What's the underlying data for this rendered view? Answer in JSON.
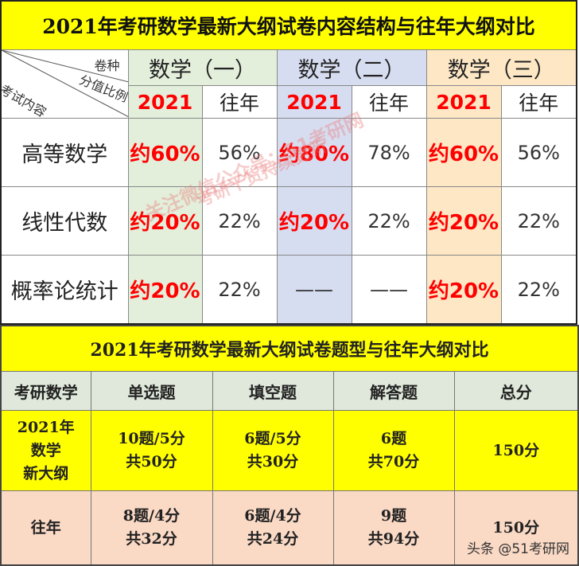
{
  "table1": {
    "title": "2021年考研数学最新大纲试卷内容结构与往年大纲对比",
    "corner": {
      "top": "卷种",
      "middle": "分值比例",
      "bottom": "考试内容"
    },
    "groups": [
      "数学（一）",
      "数学（二）",
      "数学（三）"
    ],
    "year_new": "2021",
    "year_old": "往年",
    "rows": [
      {
        "label": "高等数学",
        "values": [
          "约60%",
          "56%",
          "约80%",
          "78%",
          "约60%",
          "56%"
        ]
      },
      {
        "label": "线性代数",
        "values": [
          "约20%",
          "22%",
          "约20%",
          "22%",
          "约20%",
          "22%"
        ]
      },
      {
        "label": "概率论统计",
        "values": [
          "约20%",
          "22%",
          "——",
          "——",
          "约20%",
          "22%"
        ]
      }
    ],
    "colors": {
      "title_bg": "#ffff00",
      "group1_bg": "#e3efdb",
      "group2_bg": "#d7ddf0",
      "group3_bg": "#fde7c5",
      "highlight": "#ff0000"
    }
  },
  "table2": {
    "title": "2021年考研数学最新大纲试卷题型与往年大纲对比",
    "headers": [
      "考研数学",
      "单选题",
      "填空题",
      "解答题",
      "总分"
    ],
    "rows": [
      {
        "label": [
          "2021年",
          "数学",
          "新大纲"
        ],
        "cells": [
          [
            "10题/5分",
            "共50分"
          ],
          [
            "6题/5分",
            "共30分"
          ],
          [
            "6题",
            "共70分"
          ]
        ],
        "total": "150分"
      },
      {
        "label": [
          "往年"
        ],
        "cells": [
          [
            "8题/4分",
            "共32分"
          ],
          [
            "6题/4分",
            "共24分"
          ],
          [
            "9题",
            "共94分"
          ]
        ],
        "total": "150分"
      }
    ],
    "colors": {
      "title_bg": "#ffff00",
      "header_bg": "#dfe8da",
      "new_row_bg": "#ffff00",
      "old_row_bg": "#fad9c5"
    }
  },
  "watermark": {
    "line1": "关注微信公众号：51考研网",
    "line2": "考研干货持续更新"
  },
  "credit": "头条 @51考研网"
}
